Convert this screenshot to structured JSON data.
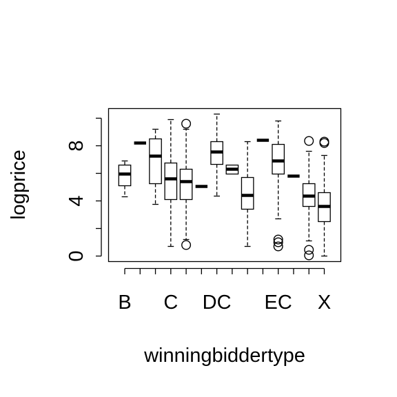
{
  "chart_data": {
    "type": "box",
    "xlabel": "winningbiddertype",
    "ylabel": "logprice",
    "ylim": [
      -0.4,
      10.7
    ],
    "y_ticks": [
      0,
      2,
      4,
      6,
      8,
      10
    ],
    "y_tick_labels": [
      "0",
      "",
      "4",
      "",
      "8",
      ""
    ],
    "categories": [
      "B",
      "",
      "",
      "C",
      "",
      "",
      "DC",
      "",
      "",
      "",
      "EC",
      "",
      "",
      "X"
    ],
    "boxes": [
      {
        "q1": 5.1,
        "median": 5.95,
        "q3": 6.6,
        "whisker_low": 4.3,
        "whisker_high": 6.9,
        "outliers": []
      },
      {
        "q1": 8.2,
        "median": 8.2,
        "q3": 8.2,
        "whisker_low": 8.2,
        "whisker_high": 8.2,
        "outliers": []
      },
      {
        "q1": 5.25,
        "median": 7.25,
        "q3": 8.5,
        "whisker_low": 3.75,
        "whisker_high": 9.2,
        "outliers": []
      },
      {
        "q1": 4.1,
        "median": 5.6,
        "q3": 6.75,
        "whisker_low": 0.7,
        "whisker_high": 9.9,
        "outliers": []
      },
      {
        "q1": 4.1,
        "median": 5.4,
        "q3": 6.3,
        "whisker_low": 1.2,
        "whisker_high": 9.2,
        "outliers": [
          0.8,
          9.6
        ]
      },
      {
        "q1": 5.05,
        "median": 5.05,
        "q3": 5.05,
        "whisker_low": 5.05,
        "whisker_high": 5.05,
        "outliers": []
      },
      {
        "q1": 6.65,
        "median": 7.55,
        "q3": 8.3,
        "whisker_low": 4.35,
        "whisker_high": 10.3,
        "outliers": []
      },
      {
        "q1": 5.95,
        "median": 6.3,
        "q3": 6.6,
        "whisker_low": 5.95,
        "whisker_high": 6.6,
        "outliers": []
      },
      {
        "q1": 3.4,
        "median": 4.4,
        "q3": 5.7,
        "whisker_low": 0.7,
        "whisker_high": 8.3,
        "outliers": []
      },
      {
        "q1": 8.4,
        "median": 8.4,
        "q3": 8.4,
        "whisker_low": 8.4,
        "whisker_high": 8.4,
        "outliers": []
      },
      {
        "q1": 5.95,
        "median": 6.9,
        "q3": 8.1,
        "whisker_low": 2.7,
        "whisker_high": 9.8,
        "outliers": [
          0.7,
          1.0,
          1.2
        ]
      },
      {
        "q1": 5.8,
        "median": 5.8,
        "q3": 5.8,
        "whisker_low": 5.8,
        "whisker_high": 5.8,
        "outliers": []
      },
      {
        "q1": 3.6,
        "median": 4.35,
        "q3": 5.25,
        "whisker_low": 1.1,
        "whisker_high": 7.6,
        "outliers": [
          0.05,
          0.45,
          8.35
        ]
      },
      {
        "q1": 2.5,
        "median": 3.6,
        "q3": 4.6,
        "whisker_low": 0.0,
        "whisker_high": 7.3,
        "outliers": [
          8.2,
          8.3
        ]
      }
    ]
  }
}
